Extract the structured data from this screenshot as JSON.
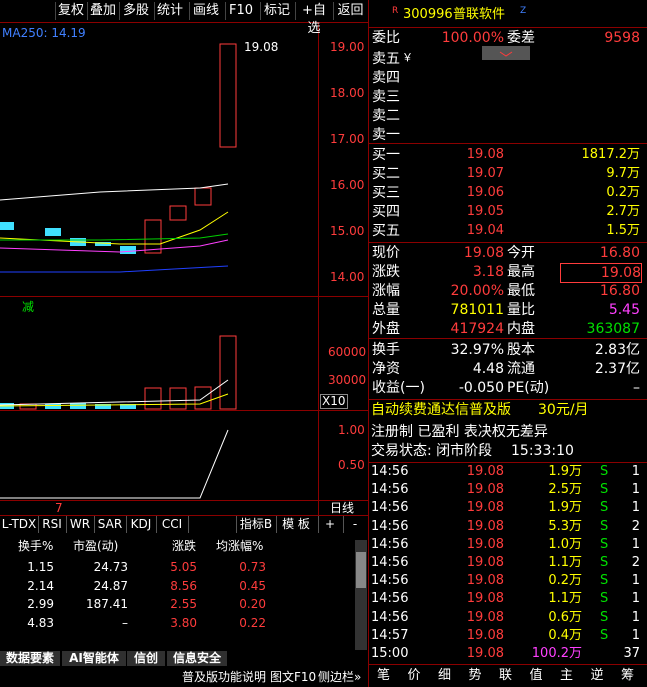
{
  "toolbar": [
    "复权",
    "叠加",
    "多股",
    "统计",
    "画线",
    "F10",
    "标记",
    "+自选",
    "返回"
  ],
  "chart": {
    "ma_label": "MA250: 14.19",
    "high_label": "19.08",
    "price_ticks": [
      "19.00",
      "18.00",
      "17.00",
      "16.00",
      "15.00",
      "14.00"
    ],
    "marker": "减",
    "volume_ticks": [
      "60000",
      "30000"
    ],
    "volume_unit": "X10",
    "indicator_ticks": [
      "1.00",
      "0.50"
    ],
    "date_mark": "7",
    "period": "日线"
  },
  "tabs": [
    "L-TDX",
    "RSI",
    "WR",
    "SAR",
    "KDJ",
    "CCI"
  ],
  "tab_right": [
    "指标B",
    "模 板",
    "+",
    "-"
  ],
  "table": {
    "headers": [
      "换手%",
      "市盈(动)",
      "涨跌",
      "均涨幅%"
    ],
    "rows": [
      [
        "1.15",
        "24.73",
        "5.05",
        "0.73"
      ],
      [
        "2.14",
        "24.87",
        "8.56",
        "0.45"
      ],
      [
        "2.99",
        "187.41",
        "2.55",
        "0.20"
      ],
      [
        "4.83",
        "–",
        "3.80",
        "0.22"
      ]
    ]
  },
  "bottom_tabs": [
    "数据要素",
    "AI智能体",
    "信创",
    "信息安全"
  ],
  "footer": [
    "普及版功能说明",
    "图文F10",
    "侧边栏»"
  ],
  "quote": {
    "prefix": "R",
    "code": "300996",
    "name": "普联软件",
    "suffix": "Z",
    "weibi": [
      "委比",
      "100.00%",
      "委差",
      "9598"
    ],
    "sell": [
      "卖五",
      "卖四",
      "卖三",
      "卖二",
      "卖一"
    ],
    "sell_icon": "￥",
    "buy": [
      [
        "买一",
        "19.08",
        "1817.2万"
      ],
      [
        "买二",
        "19.07",
        "9.7万"
      ],
      [
        "买三",
        "19.06",
        "0.2万"
      ],
      [
        "买四",
        "19.05",
        "2.7万"
      ],
      [
        "买五",
        "19.04",
        "1.5万"
      ]
    ],
    "stats": [
      [
        "现价",
        "19.08",
        "今开",
        "16.80"
      ],
      [
        "涨跌",
        "3.18",
        "最高",
        "19.08"
      ],
      [
        "涨幅",
        "20.00%",
        "最低",
        "16.80"
      ],
      [
        "总量",
        "781011",
        "量比",
        "5.45"
      ],
      [
        "外盘",
        "417924",
        "内盘",
        "363087"
      ]
    ],
    "fund": [
      [
        "换手",
        "32.97%",
        "股本",
        "2.83亿"
      ],
      [
        "净资",
        "4.48",
        "流通",
        "2.37亿"
      ],
      [
        "收益(一)",
        "-0.050",
        "PE(动)",
        "–"
      ]
    ],
    "promo": [
      "自动续费通达信普及版",
      "30元/月"
    ],
    "tags": "注册制 已盈利 表决权无差异",
    "status": [
      "交易状态: 闭市阶段",
      "15:33:10"
    ],
    "ticks": [
      [
        "14:56",
        "19.08",
        "1.9万",
        "S",
        "1"
      ],
      [
        "14:56",
        "19.08",
        "2.5万",
        "S",
        "1"
      ],
      [
        "14:56",
        "19.08",
        "1.9万",
        "S",
        "1"
      ],
      [
        "14:56",
        "19.08",
        "5.3万",
        "S",
        "2"
      ],
      [
        "14:56",
        "19.08",
        "1.0万",
        "S",
        "1"
      ],
      [
        "14:56",
        "19.08",
        "1.1万",
        "S",
        "2"
      ],
      [
        "14:56",
        "19.08",
        "0.2万",
        "S",
        "1"
      ],
      [
        "14:56",
        "19.08",
        "1.1万",
        "S",
        "1"
      ],
      [
        "14:56",
        "19.08",
        "0.6万",
        "S",
        "1"
      ],
      [
        "14:57",
        "19.08",
        "0.4万",
        "S",
        "1"
      ],
      [
        "15:00",
        "19.08",
        "100.2万",
        null,
        "37"
      ]
    ],
    "tabs": [
      "笔",
      "价",
      "细",
      "势",
      "联",
      "值",
      "主",
      "逆",
      "筹"
    ]
  }
}
